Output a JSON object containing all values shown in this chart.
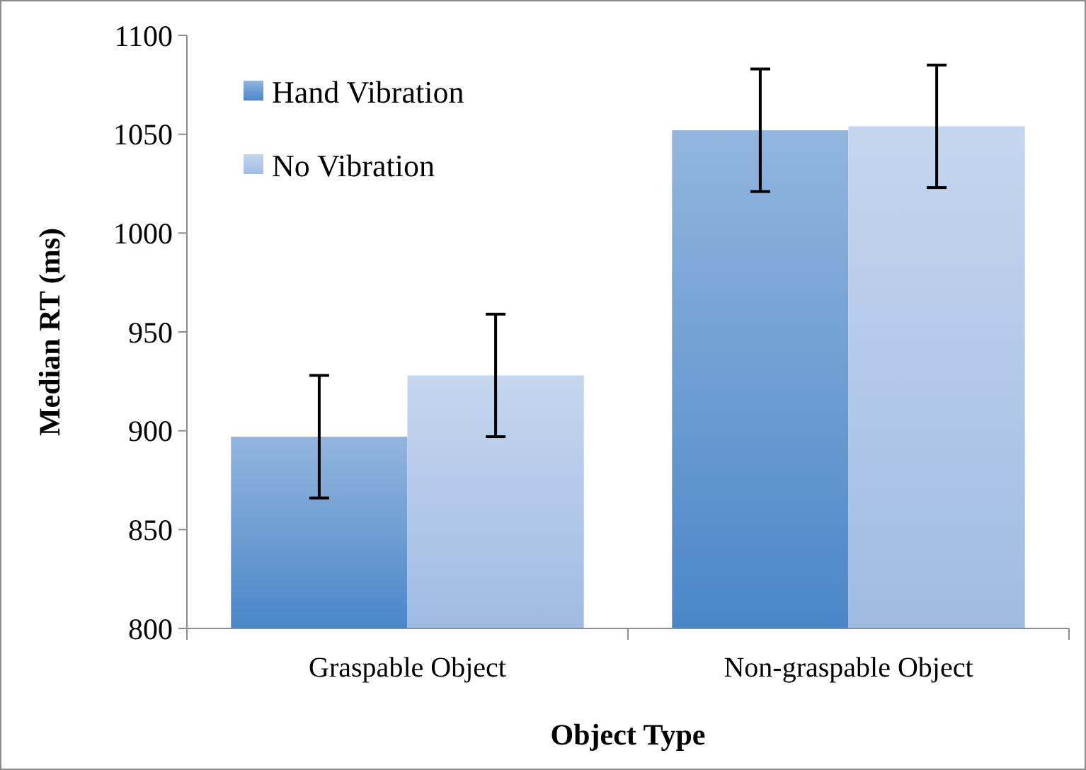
{
  "chart_data": {
    "type": "bar",
    "xlabel": "Object Type",
    "ylabel": "Median RT (ms)",
    "categories": [
      "Graspable Object",
      "Non-graspable Object"
    ],
    "series": [
      {
        "name": "Hand Vibration",
        "color": "#4a86c8",
        "values": [
          897,
          1052
        ],
        "errors": [
          31,
          31
        ]
      },
      {
        "name": "No Vibration",
        "color": "#9fbbe3",
        "values": [
          928,
          1054
        ],
        "errors": [
          31,
          31
        ]
      }
    ],
    "ylim": [
      800,
      1100
    ],
    "yticks": [
      800,
      850,
      900,
      950,
      1000,
      1050,
      1100
    ],
    "grid": false,
    "legend": "top left"
  }
}
